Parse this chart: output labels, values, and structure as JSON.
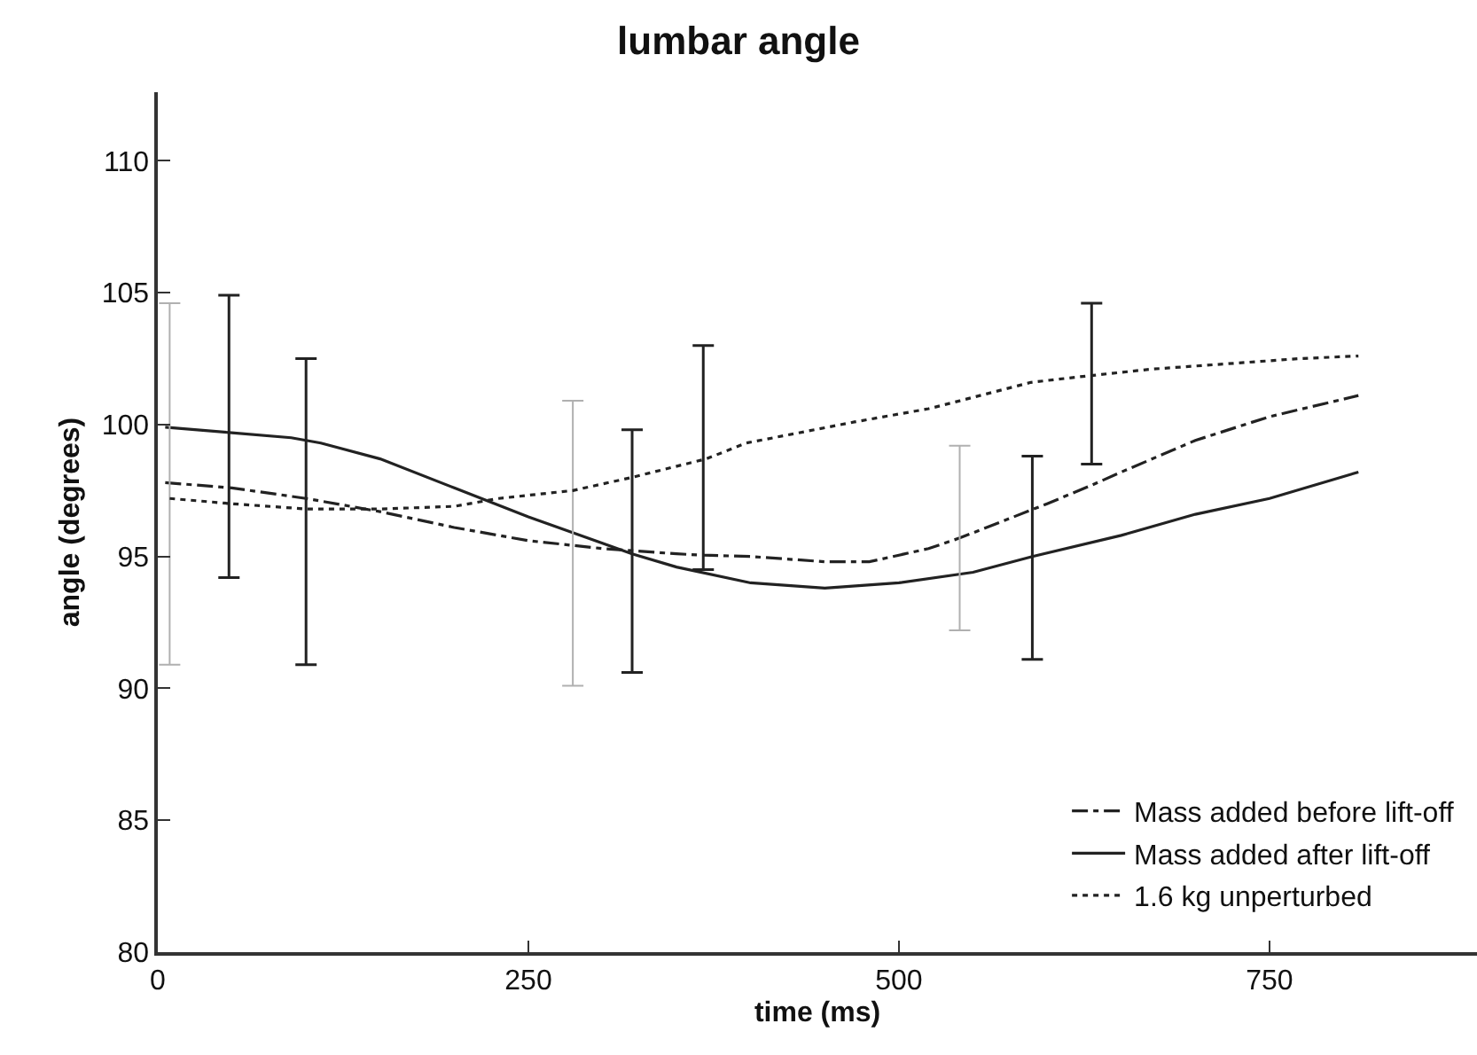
{
  "chart_data": {
    "type": "line",
    "title": "lumbar angle",
    "xlabel": "time (ms)",
    "ylabel": "angle (degrees)",
    "xlim": [
      0,
      890
    ],
    "xticks": [
      0,
      250,
      500,
      750
    ],
    "ylim": [
      80,
      112.6
    ],
    "yticks": [
      80,
      85,
      90,
      95,
      100,
      105,
      110
    ],
    "grid": false,
    "legend": "bottom right",
    "series": [
      {
        "name": "Mass added before lift-off",
        "color": "#222222",
        "line_style": "dashdot",
        "x": [
          5,
          50,
          100,
          150,
          200,
          250,
          300,
          350,
          368,
          400,
          450,
          480,
          520,
          541,
          600,
          630,
          650,
          700,
          750,
          810
        ],
        "values": [
          97.8,
          97.6,
          97.2,
          96.7,
          96.1,
          95.6,
          95.3,
          95.1,
          95.05,
          95.0,
          94.8,
          94.8,
          95.3,
          95.7,
          97.0,
          97.7,
          98.2,
          99.4,
          100.3,
          101.1
        ],
        "errors": [
          null,
          null,
          [
            90.9,
            102.5
          ],
          null,
          null,
          null,
          null,
          null,
          [
            94.5,
            103.0
          ],
          null,
          null,
          null,
          null,
          null,
          null,
          [
            98.5,
            104.6
          ],
          null,
          null,
          null,
          null
        ]
      },
      {
        "name": "Mass added after lift-off",
        "color": "#222222",
        "line_style": "solid",
        "x": [
          5,
          48,
          90,
          110,
          150,
          200,
          250,
          300,
          320,
          350,
          400,
          450,
          500,
          550,
          590,
          650,
          700,
          750,
          810
        ],
        "values": [
          99.9,
          99.7,
          99.5,
          99.3,
          98.7,
          97.6,
          96.5,
          95.5,
          95.1,
          94.6,
          94.0,
          93.8,
          94.0,
          94.4,
          95.0,
          95.8,
          96.6,
          97.2,
          98.2
        ],
        "errors": [
          null,
          [
            94.2,
            104.9
          ],
          null,
          null,
          null,
          null,
          null,
          null,
          [
            90.6,
            99.8
          ],
          null,
          null,
          null,
          null,
          null,
          [
            91.1,
            98.8
          ],
          null,
          null,
          null,
          null
        ]
      },
      {
        "name": "1.6 kg unperturbed",
        "color": "#222222",
        "line_style": "dotted",
        "x": [
          8,
          50,
          100,
          150,
          200,
          230,
          280,
          320,
          370,
          397,
          470,
          520,
          541,
          589,
          620,
          670,
          720,
          770,
          810
        ],
        "values": [
          97.2,
          97.0,
          96.8,
          96.8,
          96.9,
          97.2,
          97.5,
          98.0,
          98.7,
          99.3,
          100.1,
          100.6,
          100.9,
          101.6,
          101.8,
          102.1,
          102.3,
          102.5,
          102.6
        ],
        "errors": [
          [
            90.9,
            104.6
          ],
          null,
          null,
          null,
          null,
          null,
          [
            90.1,
            100.9
          ],
          null,
          null,
          null,
          null,
          null,
          [
            92.2,
            99.2
          ],
          null,
          null,
          null,
          null,
          null,
          null
        ]
      }
    ]
  }
}
